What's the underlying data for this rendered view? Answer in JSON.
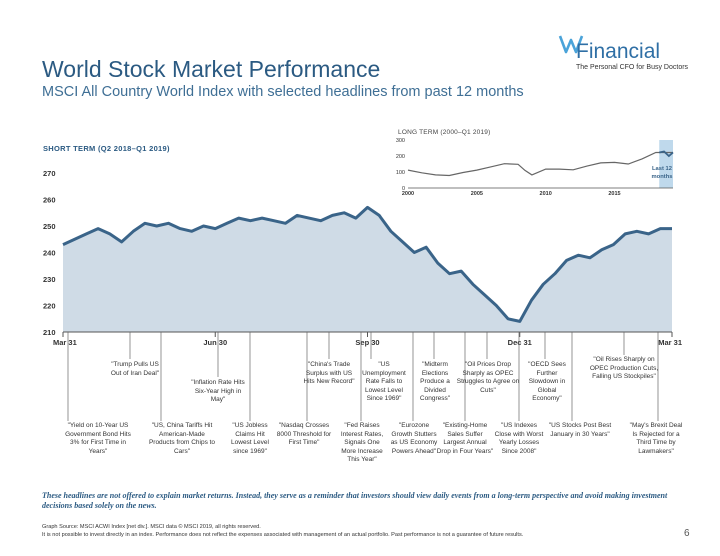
{
  "title": "World Stock Market Performance",
  "subtitle": "MSCI All Country World Index with selected headlines from past 12 months",
  "logo": {
    "name": "Financial",
    "tagline": "The Personal CFO for Busy Doctors"
  },
  "disclaimer": "These headlines are not offered to explain market returns. Instead, they serve as a reminder that investors should view daily events from a long-term perspective and avoid making investment decisions based solely on the news.",
  "source_line1": "Graph Source: MSCI ACWI Index [net div.]. MSCI data © MSCI 2019, all rights reserved.",
  "source_line2": "It is not possible to invest directly in an index. Performance does not reflect the expenses associated with management of an actual portfolio. Past performance is not a guarantee of future results.",
  "page_number": "6",
  "colors": {
    "line": "#3a6489",
    "fill": "#cfdbe6",
    "title": "#2b5a82",
    "highlight": "#bfd9ec"
  },
  "chart_data": [
    {
      "type": "area",
      "title": "SHORT TERM (Q2 2018–Q1 2019)",
      "ylim": [
        210,
        270
      ],
      "yticks": [
        210,
        220,
        230,
        240,
        250,
        260,
        270
      ],
      "x_tick_labels": [
        "Mar 31",
        "Jun 30",
        "Sep 30",
        "Dec 31",
        "Mar 31"
      ],
      "x_ticks": [
        0,
        13,
        26,
        39,
        52
      ],
      "x": [
        0,
        1,
        2,
        3,
        4,
        5,
        6,
        7,
        8,
        9,
        10,
        11,
        12,
        13,
        14,
        15,
        16,
        17,
        18,
        19,
        20,
        21,
        22,
        23,
        24,
        25,
        26,
        27,
        28,
        29,
        30,
        31,
        32,
        33,
        34,
        35,
        36,
        37,
        38,
        39,
        40,
        41,
        42,
        43,
        44,
        45,
        46,
        47,
        48,
        49,
        50,
        51,
        52
      ],
      "values": [
        243,
        245,
        247,
        249,
        247,
        244,
        248,
        251,
        250,
        251,
        249,
        248,
        250,
        249,
        251,
        253,
        252,
        253,
        252,
        251,
        254,
        253,
        252,
        254,
        255,
        253,
        257,
        254,
        248,
        244,
        240,
        242,
        236,
        232,
        233,
        228,
        224,
        220,
        215,
        214,
        222,
        228,
        232,
        237,
        239,
        238,
        241,
        243,
        247,
        248,
        247,
        249,
        249
      ]
    },
    {
      "type": "line",
      "title": "LONG TERM (2000–Q1 2019)",
      "ylim": [
        0,
        300
      ],
      "yticks": [
        0,
        100,
        200,
        300
      ],
      "x_tick_labels": [
        "2000",
        "2005",
        "2010",
        "2015"
      ],
      "x": [
        2000,
        2001,
        2002,
        2003,
        2004,
        2005,
        2006,
        2007,
        2008,
        2008.5,
        2009,
        2010,
        2011,
        2012,
        2013,
        2014,
        2015,
        2016,
        2017,
        2018,
        2019.25
      ],
      "values": [
        112,
        95,
        82,
        78,
        97,
        112,
        132,
        152,
        148,
        110,
        82,
        118,
        118,
        114,
        137,
        157,
        160,
        150,
        182,
        222,
        222
      ],
      "annotation": "Last 12 months"
    }
  ],
  "headlines": [
    {
      "id": "h1",
      "text": "\"Yield on 10-Year US Government Bond Hits 3% for First Time in Years\""
    },
    {
      "id": "h2",
      "text": "\"Trump Pulls US Out of Iran Deal\""
    },
    {
      "id": "h3",
      "text": "\"US, China Tariffs Hit American-Made Products from Chips to Cars\""
    },
    {
      "id": "h4",
      "text": "\"Inflation Rate Hits Six-Year High in May\""
    },
    {
      "id": "h5",
      "text": "\"US Jobless Claims Hit Lowest Level since 1969\""
    },
    {
      "id": "h6",
      "text": "\"Nasdaq Crosses 8000 Threshold for First Time\""
    },
    {
      "id": "h7",
      "text": "\"China's Trade Surplus with US Hits New Record\""
    },
    {
      "id": "h8",
      "text": "\"Fed Raises Interest Rates, Signals One More Increase This Year\""
    },
    {
      "id": "h9",
      "text": "\"US Unemployment Rate Falls to Lowest Level Since 1969\""
    },
    {
      "id": "h10",
      "text": "\"Eurozone Growth Stutters as US Economy Powers Ahead\""
    },
    {
      "id": "h11",
      "text": "\"Midterm Elections Produce a Divided Congress\""
    },
    {
      "id": "h12",
      "text": "\"Existing-Home Sales Suffer Largest Annual Drop in Four Years\""
    },
    {
      "id": "h13",
      "text": "\"Oil Prices Drop Sharply as OPEC Struggles to Agree on Cuts\""
    },
    {
      "id": "h14",
      "text": "\"US Indexes Close with Worst Yearly Losses Since 2008\""
    },
    {
      "id": "h15",
      "text": "\"OECD Sees Further Slowdown in Global Economy\""
    },
    {
      "id": "h16",
      "text": "\"US Stocks Post Best January in 30 Years\""
    },
    {
      "id": "h17",
      "text": "\"Oil Rises Sharply on OPEC Production Cuts, Falling US Stockpiles\""
    },
    {
      "id": "h18",
      "text": "\"May's Brexit Deal Is Rejected for a Third Time by Lawmakers\""
    }
  ]
}
